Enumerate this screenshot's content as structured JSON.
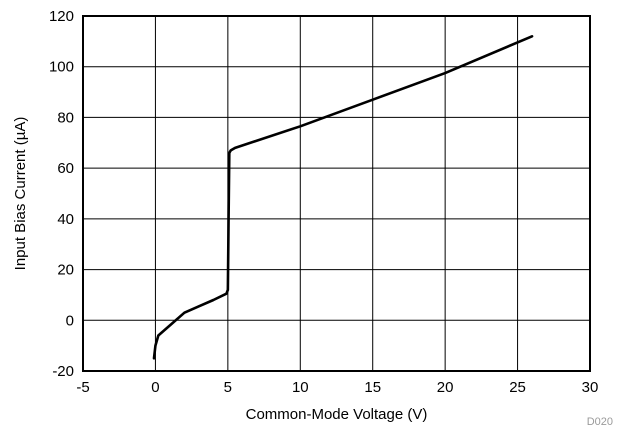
{
  "chart_data": {
    "type": "line",
    "xlabel": "Common-Mode Voltage (V)",
    "ylabel": "Input Bias Current (µA)",
    "xlim": [
      -5,
      30
    ],
    "ylim": [
      -20,
      120
    ],
    "x_ticks": [
      -5,
      0,
      5,
      10,
      15,
      20,
      25,
      30
    ],
    "y_ticks": [
      -20,
      0,
      20,
      40,
      60,
      80,
      100,
      120
    ],
    "grid": true,
    "figure_code": "D020",
    "series": [
      {
        "color": "#000000",
        "x": [
          -0.1,
          0.0,
          0.2,
          1.0,
          2.0,
          3.0,
          4.0,
          4.9,
          5.0,
          5.05,
          5.1,
          5.2,
          5.5,
          10.0,
          15.0,
          20.0,
          26.0
        ],
        "y": [
          -15,
          -10,
          -6,
          -2,
          3,
          5.5,
          8,
          10.5,
          12,
          40,
          66,
          67,
          68,
          76.5,
          87,
          97.5,
          112
        ]
      }
    ]
  }
}
